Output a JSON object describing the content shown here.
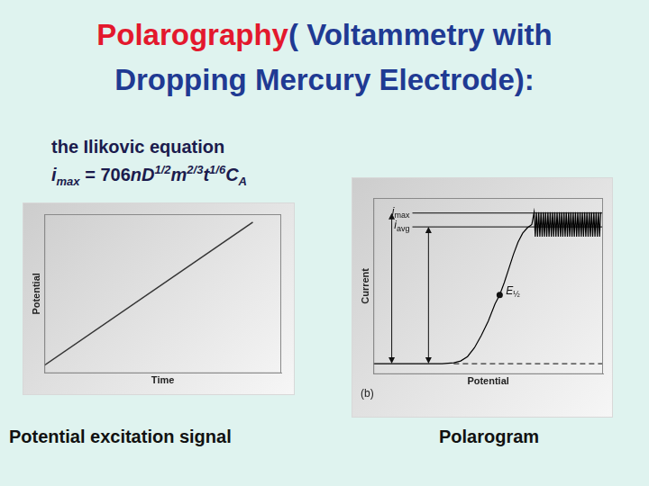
{
  "slide": {
    "title_lines": [
      [
        {
          "text": "Polarography",
          "color": "#e3182d"
        },
        {
          "text": "( Voltammetry with",
          "color": "#1f3a93"
        }
      ],
      [
        {
          "text": "Dropping Mercury Electrode):",
          "color": "#1f3a93"
        }
      ]
    ],
    "equation_title": "the Ilikovic equation",
    "equation": [
      {
        "text": "i",
        "style": "italic"
      },
      {
        "text": "max",
        "style": "sub"
      },
      {
        "text": " = 706",
        "style": "plain"
      },
      {
        "text": "nD",
        "style": "italic"
      },
      {
        "text": "1/2",
        "style": "sup"
      },
      {
        "text": "m",
        "style": "italic"
      },
      {
        "text": "2/3",
        "style": "sup"
      },
      {
        "text": "t",
        "style": "italic"
      },
      {
        "text": "1/6",
        "style": "sup"
      },
      {
        "text": "C",
        "style": "italic"
      },
      {
        "text": "A",
        "style": "sub"
      }
    ],
    "captions": [
      "Potential excitation signal",
      "Polarogram"
    ]
  },
  "chart_data": [
    {
      "type": "line",
      "x_label": "Time",
      "y_label": "Potential",
      "x": [
        0,
        88
      ],
      "values": [
        5,
        95
      ],
      "color": "#333333",
      "xlim": [
        0,
        100
      ],
      "ylim": [
        0,
        100
      ],
      "xticks": [],
      "yticks": [],
      "tick_labels": false,
      "grid": false
    },
    {
      "type": "line",
      "x_label": "Potential",
      "y_label": "Current",
      "panel_label": "(b)",
      "xlim": [
        0,
        100
      ],
      "ylim": [
        0,
        100
      ],
      "xticks": [],
      "yticks": [],
      "tick_labels": false,
      "grid": false,
      "series": [
        {
          "color": "#000000",
          "line_style": "solid",
          "x": [
            0,
            30,
            35,
            38,
            41,
            44,
            47,
            50,
            53,
            55,
            57,
            59,
            61,
            63,
            65,
            67,
            69,
            70,
            70.5,
            71,
            71.5,
            72,
            72.5,
            73,
            73.5,
            74,
            74.5,
            75,
            75.5,
            76,
            76.5,
            77,
            77.5,
            78,
            78.5,
            79,
            79.5,
            80,
            80.5,
            81,
            81.5,
            82,
            82.5,
            83,
            83.5,
            84,
            84.5,
            85,
            85.5,
            86,
            86.5,
            87,
            87.5,
            88,
            88.5,
            89,
            89.5,
            90,
            90.5,
            91,
            91.5,
            92,
            92.5,
            93,
            93.5,
            94,
            94.5,
            95,
            95.5,
            96,
            96.5,
            97,
            97.5,
            98,
            98.5,
            99
          ],
          "values": [
            6,
            6,
            6.5,
            7.5,
            10,
            15,
            22,
            30,
            40,
            45,
            52,
            60,
            68,
            75,
            80,
            83,
            85,
            92,
            78,
            92,
            78,
            92,
            78,
            92,
            78,
            92,
            78,
            92,
            78,
            92,
            78,
            92,
            78,
            92,
            78,
            92,
            78,
            92,
            78,
            92,
            78,
            92,
            78,
            92,
            78,
            92,
            78,
            92,
            78,
            92,
            78,
            92,
            78,
            92,
            78,
            92,
            78,
            92,
            78,
            92,
            78,
            92,
            78,
            92,
            78,
            92,
            78,
            92,
            78,
            92,
            78,
            92,
            78,
            92,
            78,
            92
          ]
        },
        {
          "color": "#333333",
          "line_style": "dashed",
          "x": [
            35,
            100
          ],
          "values": [
            6,
            6
          ]
        },
        {
          "color": "#333333",
          "line_style": "solid",
          "x": [
            17,
            100
          ],
          "values": [
            91.5,
            91.5
          ],
          "label": {
            "text": "i",
            "subscript": "max"
          }
        },
        {
          "color": "#333333",
          "line_style": "solid",
          "x": [
            17,
            100
          ],
          "values": [
            83.6,
            83.6
          ],
          "label": {
            "text": "i",
            "subscript": "avg"
          }
        }
      ],
      "arrows": [
        {
          "x": 8,
          "from": 6,
          "to": 91.5
        },
        {
          "x": 24,
          "from": 6,
          "to": 83.6
        }
      ],
      "point_annotation": {
        "x": 55,
        "y": 45,
        "text": "E",
        "subscript": "½",
        "marker": "circle"
      }
    }
  ]
}
